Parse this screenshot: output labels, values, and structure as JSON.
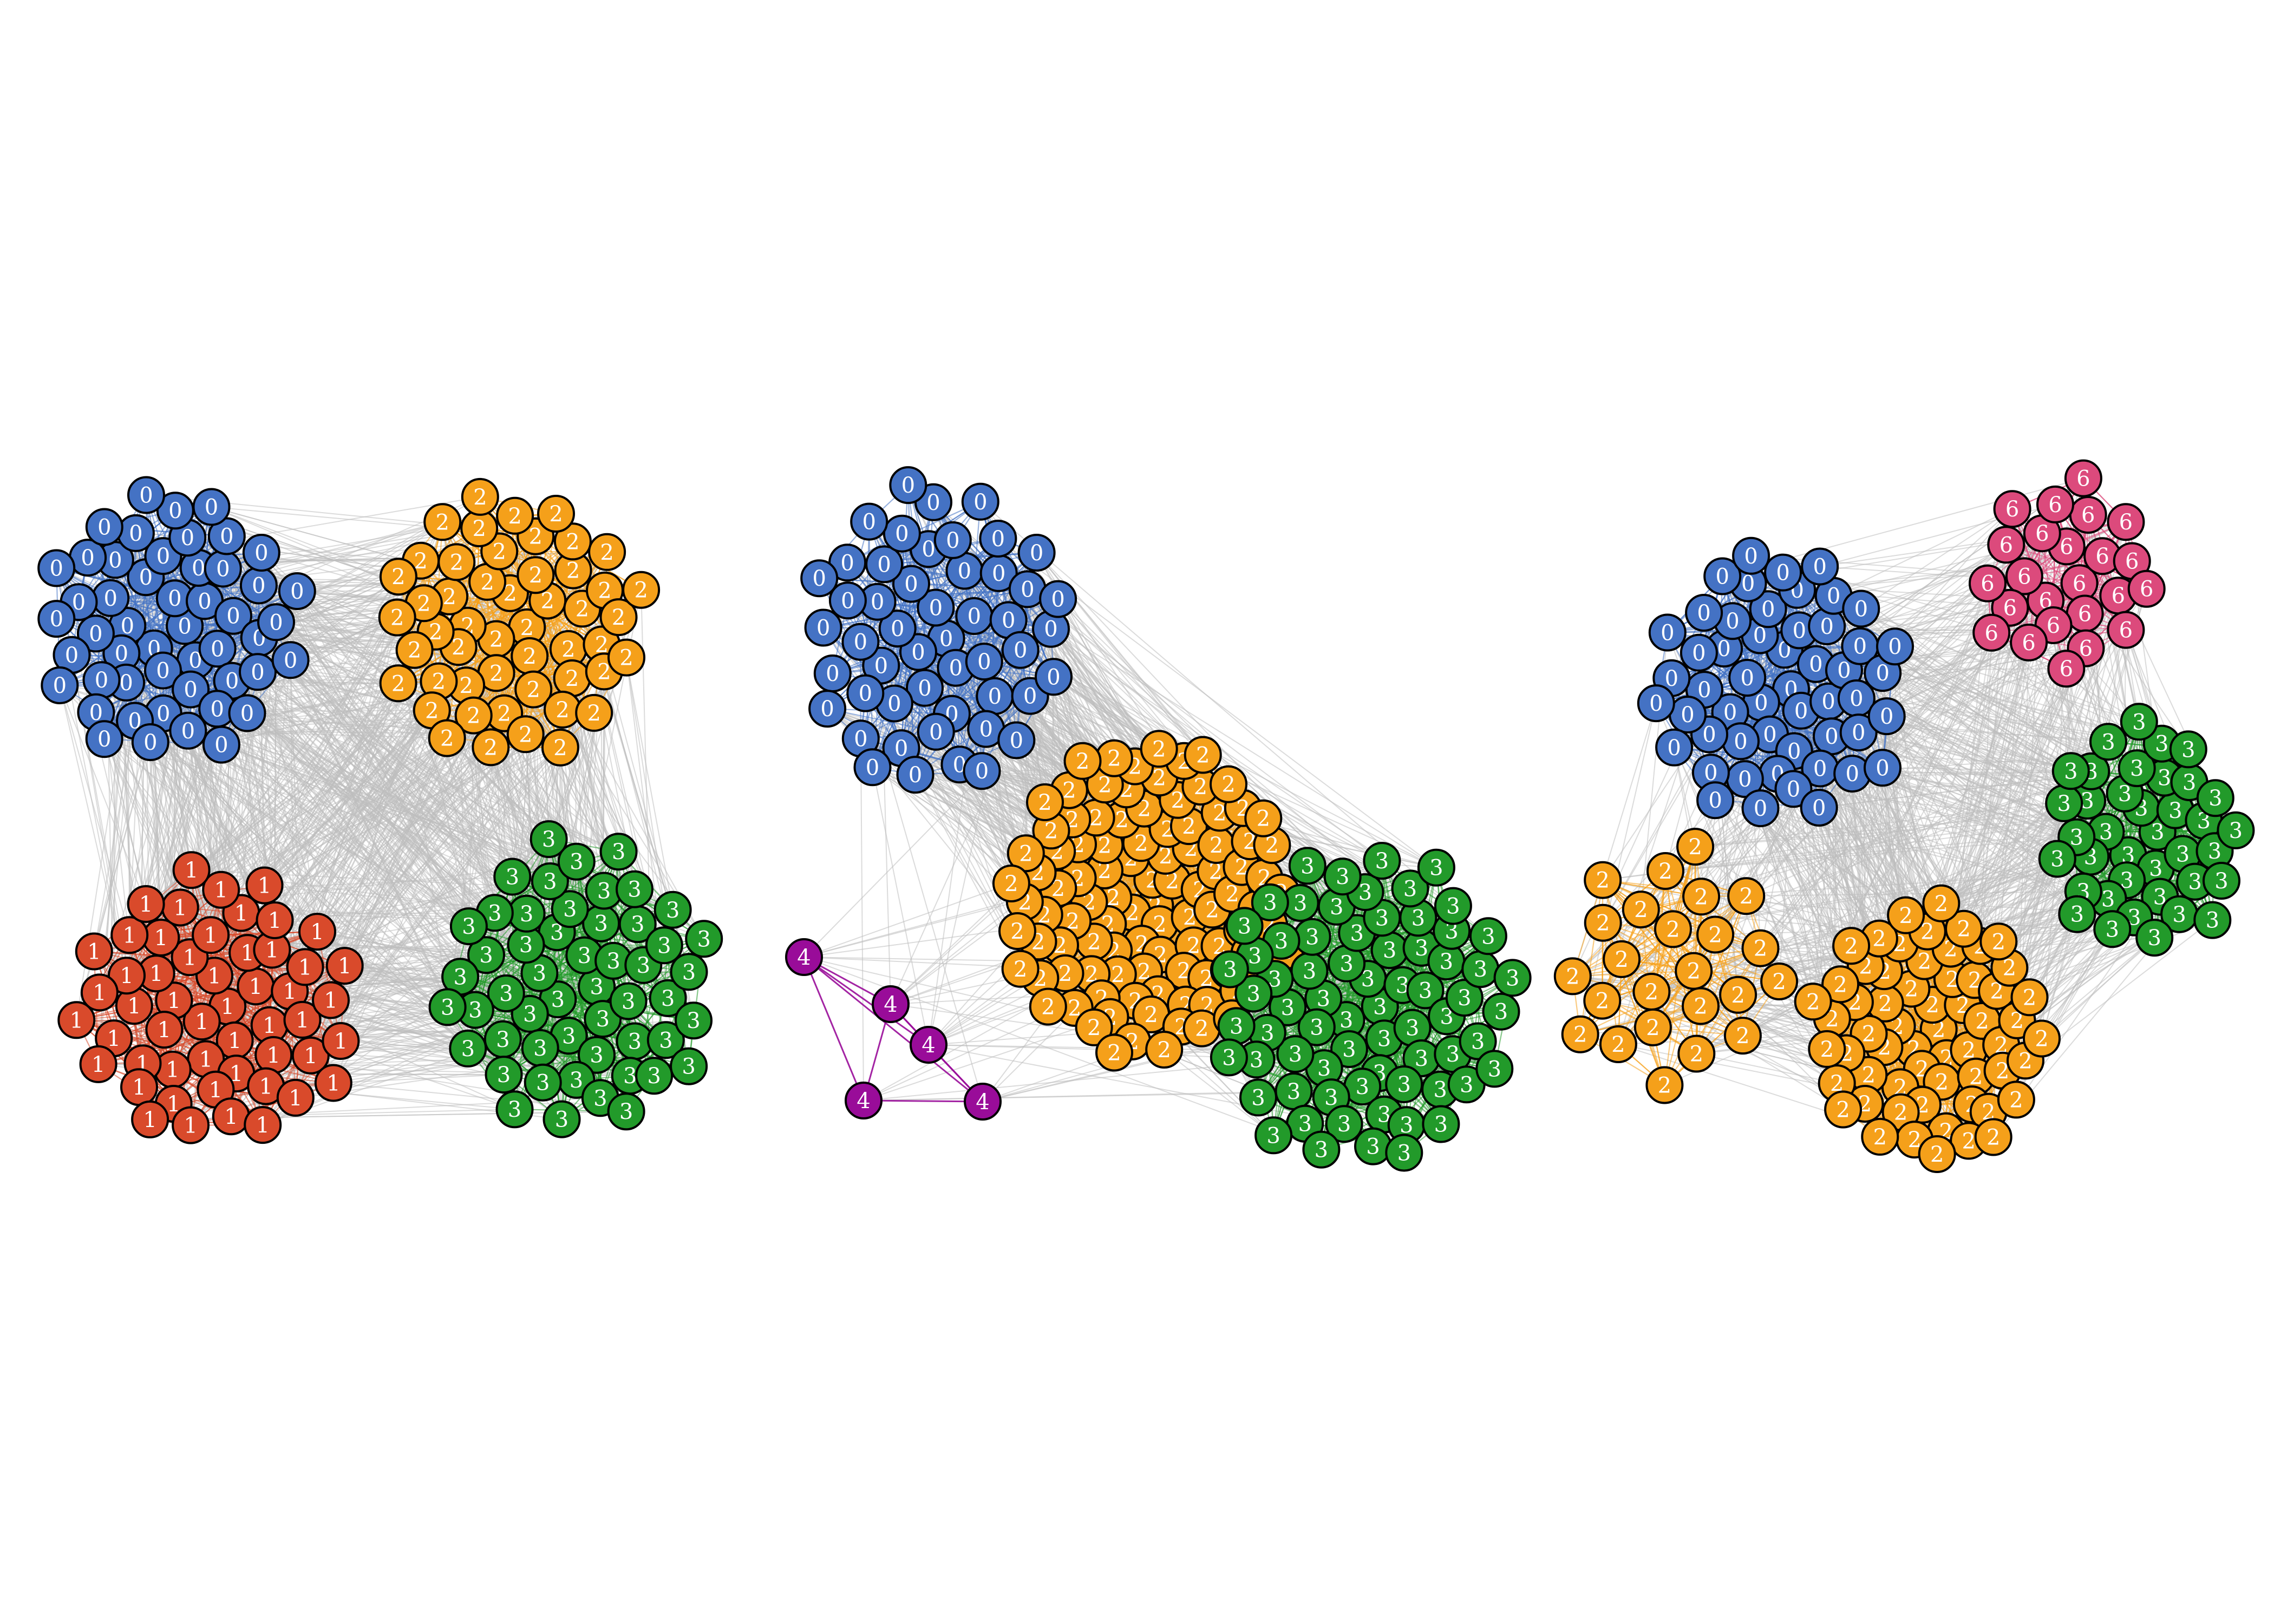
{
  "figure": {
    "panels": [
      {
        "name": "panel-left",
        "communities": [
          {
            "label": "0",
            "color": "#4472c4",
            "count": 50
          },
          {
            "label": "1",
            "color": "#d94a2b",
            "count": 52
          },
          {
            "label": "2",
            "color": "#f5a01a",
            "count": 50
          },
          {
            "label": "3",
            "color": "#229a2a",
            "count": 52
          }
        ]
      },
      {
        "name": "panel-middle",
        "communities": [
          {
            "label": "0",
            "color": "#4472c4",
            "count": 50
          },
          {
            "label": "2",
            "color": "#f5a01a",
            "count": 100
          },
          {
            "label": "3",
            "color": "#229a2a",
            "count": 70
          },
          {
            "label": "4",
            "color": "#990c99",
            "count": 5
          }
        ]
      },
      {
        "name": "panel-right",
        "communities": [
          {
            "label": "0",
            "color": "#4472c4",
            "count": 52
          },
          {
            "label": "2",
            "color": "#f5a01a",
            "count": 24
          },
          {
            "label": "2",
            "color": "#f5a01a",
            "count": 60
          },
          {
            "label": "3",
            "color": "#229a2a",
            "count": 38
          },
          {
            "label": "6",
            "color": "#dc4a7c",
            "count": 24
          }
        ]
      }
    ],
    "edge_color_between": "#bdbdbd",
    "node_stroke": "#000000"
  }
}
